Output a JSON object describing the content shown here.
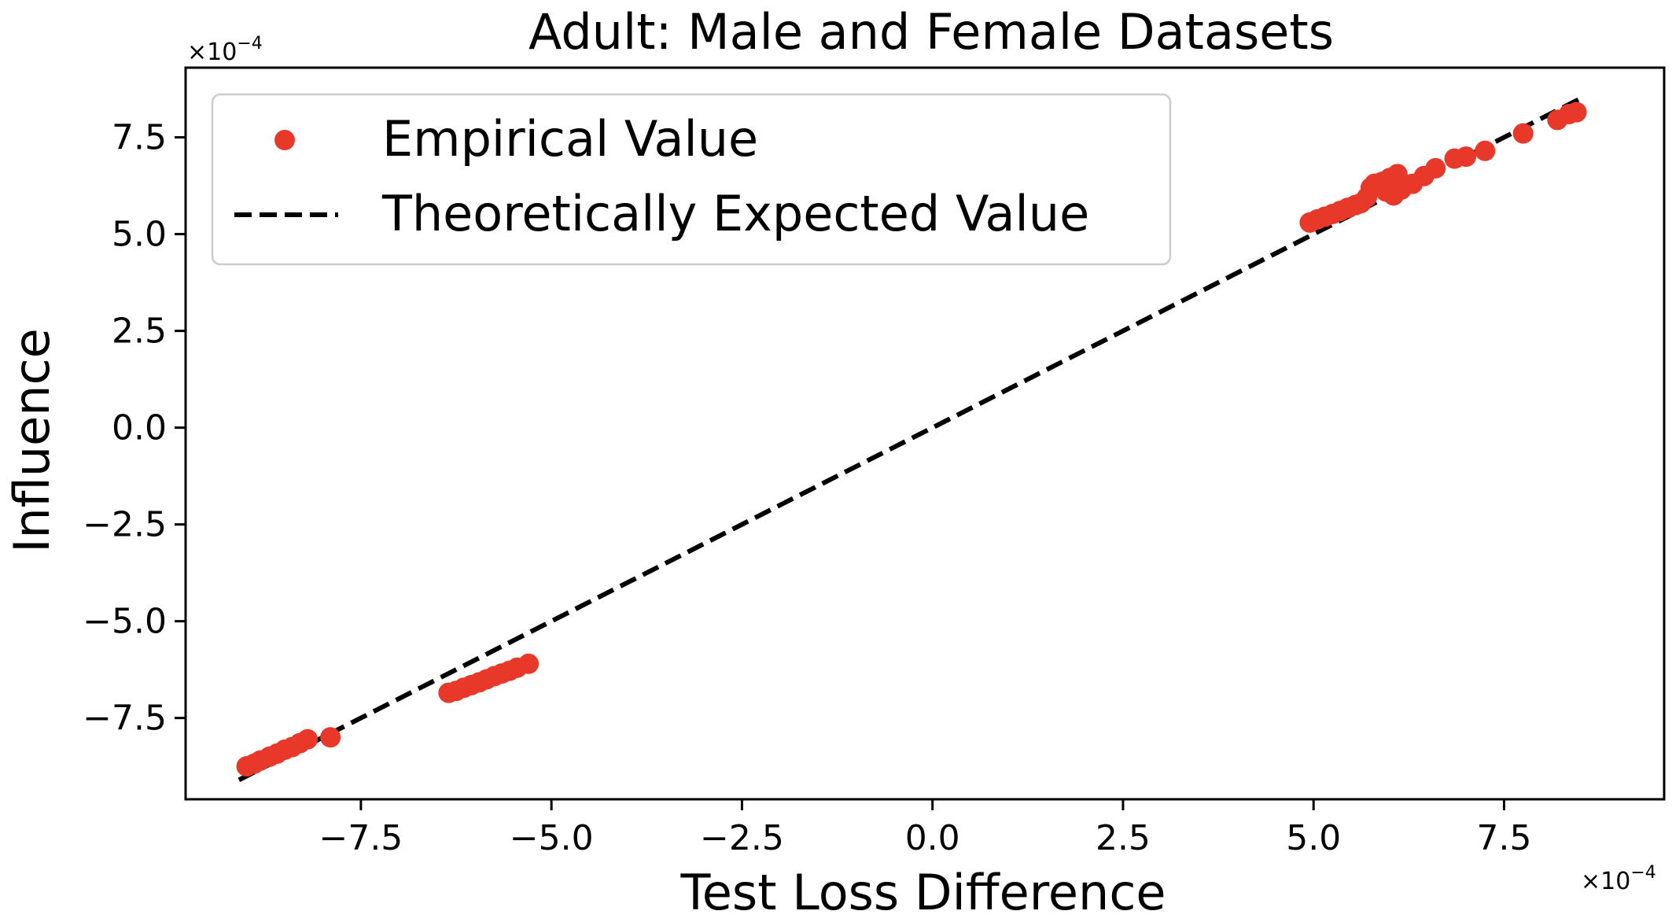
{
  "chart_data": {
    "type": "scatter",
    "title": "Adult: Male and Female Datasets",
    "xlabel": "Test Loss Difference",
    "ylabel": "Influence",
    "x_offset_base": "×10",
    "x_offset_exp": "−4",
    "y_offset_base": "×10",
    "y_offset_exp": "−4",
    "xlim": [
      -9.8,
      9.6
    ],
    "ylim": [
      -9.6,
      9.3
    ],
    "xticks": [
      -7.5,
      -5.0,
      -2.5,
      0.0,
      2.5,
      5.0,
      7.5
    ],
    "xtick_labels": [
      "−7.5",
      "−5.0",
      "−2.5",
      "0.0",
      "2.5",
      "5.0",
      "7.5"
    ],
    "yticks": [
      -7.5,
      -5.0,
      -2.5,
      0.0,
      2.5,
      5.0,
      7.5
    ],
    "ytick_labels": [
      "−7.5",
      "−5.0",
      "−2.5",
      "0.0",
      "2.5",
      "5.0",
      "7.5"
    ],
    "legend": {
      "position": "upper-left",
      "entries": [
        {
          "label": "Empirical Value",
          "marker": "circle"
        },
        {
          "label": "Theoretically Expected Value",
          "marker": "dashed-line"
        }
      ]
    },
    "colors": {
      "points": "#e8382a",
      "line": "#000000",
      "frame": "#000000"
    },
    "series": [
      {
        "name": "Empirical Value",
        "points": [
          [
            -9.0,
            -8.75
          ],
          [
            -8.9,
            -8.68
          ],
          [
            -8.82,
            -8.6
          ],
          [
            -8.7,
            -8.5
          ],
          [
            -8.6,
            -8.42
          ],
          [
            -8.5,
            -8.32
          ],
          [
            -8.4,
            -8.25
          ],
          [
            -8.3,
            -8.15
          ],
          [
            -8.2,
            -8.05
          ],
          [
            -7.9,
            -8.0
          ],
          [
            -6.35,
            -6.85
          ],
          [
            -6.25,
            -6.8
          ],
          [
            -6.15,
            -6.72
          ],
          [
            -6.05,
            -6.65
          ],
          [
            -5.95,
            -6.58
          ],
          [
            -5.85,
            -6.5
          ],
          [
            -5.75,
            -6.42
          ],
          [
            -5.65,
            -6.35
          ],
          [
            -5.55,
            -6.28
          ],
          [
            -5.45,
            -6.2
          ],
          [
            -5.3,
            -6.1
          ],
          [
            4.95,
            5.3
          ],
          [
            5.05,
            5.38
          ],
          [
            5.15,
            5.45
          ],
          [
            5.25,
            5.52
          ],
          [
            5.35,
            5.6
          ],
          [
            5.45,
            5.68
          ],
          [
            5.55,
            5.75
          ],
          [
            5.62,
            5.8
          ],
          [
            5.7,
            5.95
          ],
          [
            5.75,
            6.2
          ],
          [
            5.8,
            6.3
          ],
          [
            5.9,
            6.35
          ],
          [
            6.0,
            6.45
          ],
          [
            6.1,
            6.55
          ],
          [
            5.95,
            6.1
          ],
          [
            6.05,
            6.0
          ],
          [
            6.15,
            6.15
          ],
          [
            6.3,
            6.3
          ],
          [
            6.45,
            6.5
          ],
          [
            6.6,
            6.7
          ],
          [
            6.85,
            6.95
          ],
          [
            7.0,
            7.0
          ],
          [
            7.25,
            7.15
          ],
          [
            7.75,
            7.6
          ],
          [
            8.2,
            7.95
          ],
          [
            8.35,
            8.1
          ],
          [
            8.45,
            8.15
          ]
        ]
      },
      {
        "name": "Theoretically Expected Value",
        "line": [
          [
            -9.1,
            -9.1
          ],
          [
            8.5,
            8.5
          ]
        ]
      }
    ]
  }
}
